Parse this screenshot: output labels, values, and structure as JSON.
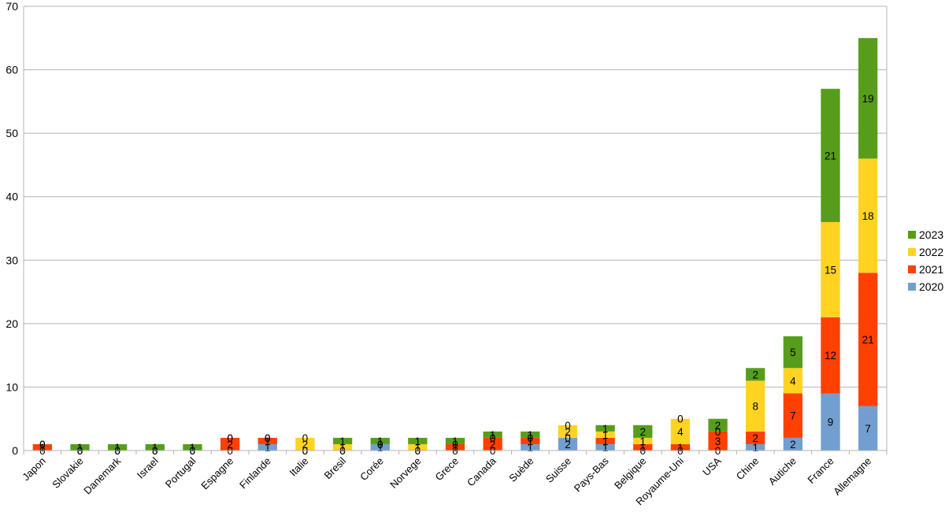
{
  "chart_data": {
    "type": "bar",
    "stacked": true,
    "categories": [
      "Japon",
      "Slovakie",
      "Danemark",
      "Israel",
      "Portugal",
      "Espagne",
      "Finlande",
      "Italie",
      "Bresil",
      "Corée",
      "Norvege",
      "Grece",
      "Canada",
      "Suède",
      "Suisse",
      "Pays-Bas",
      "Belgique",
      "Royaume-Uni",
      "USA",
      "Chine",
      "Autiche",
      "France",
      "Allemagne"
    ],
    "series": [
      {
        "name": "2020",
        "color": "#729fcf",
        "values": [
          0,
          0,
          0,
          0,
          0,
          0,
          1,
          0,
          0,
          1,
          0,
          0,
          0,
          1,
          2,
          1,
          0,
          0,
          0,
          1,
          2,
          9,
          7
        ]
      },
      {
        "name": "2021",
        "color": "#ff4000",
        "values": [
          1,
          0,
          0,
          0,
          0,
          2,
          1,
          0,
          0,
          0,
          0,
          1,
          2,
          1,
          0,
          1,
          1,
          1,
          3,
          2,
          7,
          12,
          21
        ]
      },
      {
        "name": "2022",
        "color": "#ffd320",
        "values": [
          0,
          0,
          0,
          0,
          0,
          0,
          0,
          2,
          1,
          0,
          1,
          0,
          0,
          0,
          2,
          1,
          1,
          4,
          0,
          8,
          4,
          15,
          18
        ]
      },
      {
        "name": "2023",
        "color": "#579d1c",
        "values": [
          0,
          1,
          1,
          1,
          1,
          0,
          0,
          0,
          1,
          1,
          1,
          1,
          1,
          1,
          0,
          1,
          2,
          0,
          2,
          2,
          5,
          21,
          19
        ]
      }
    ],
    "legend_order": [
      "2023",
      "2022",
      "2021",
      "2020"
    ],
    "legend_position": "right",
    "ylim": [
      0,
      70
    ],
    "yticks": [
      0,
      10,
      20,
      30,
      40,
      50,
      60,
      70
    ],
    "grid": true,
    "title": "",
    "xlabel": "",
    "ylabel": ""
  }
}
